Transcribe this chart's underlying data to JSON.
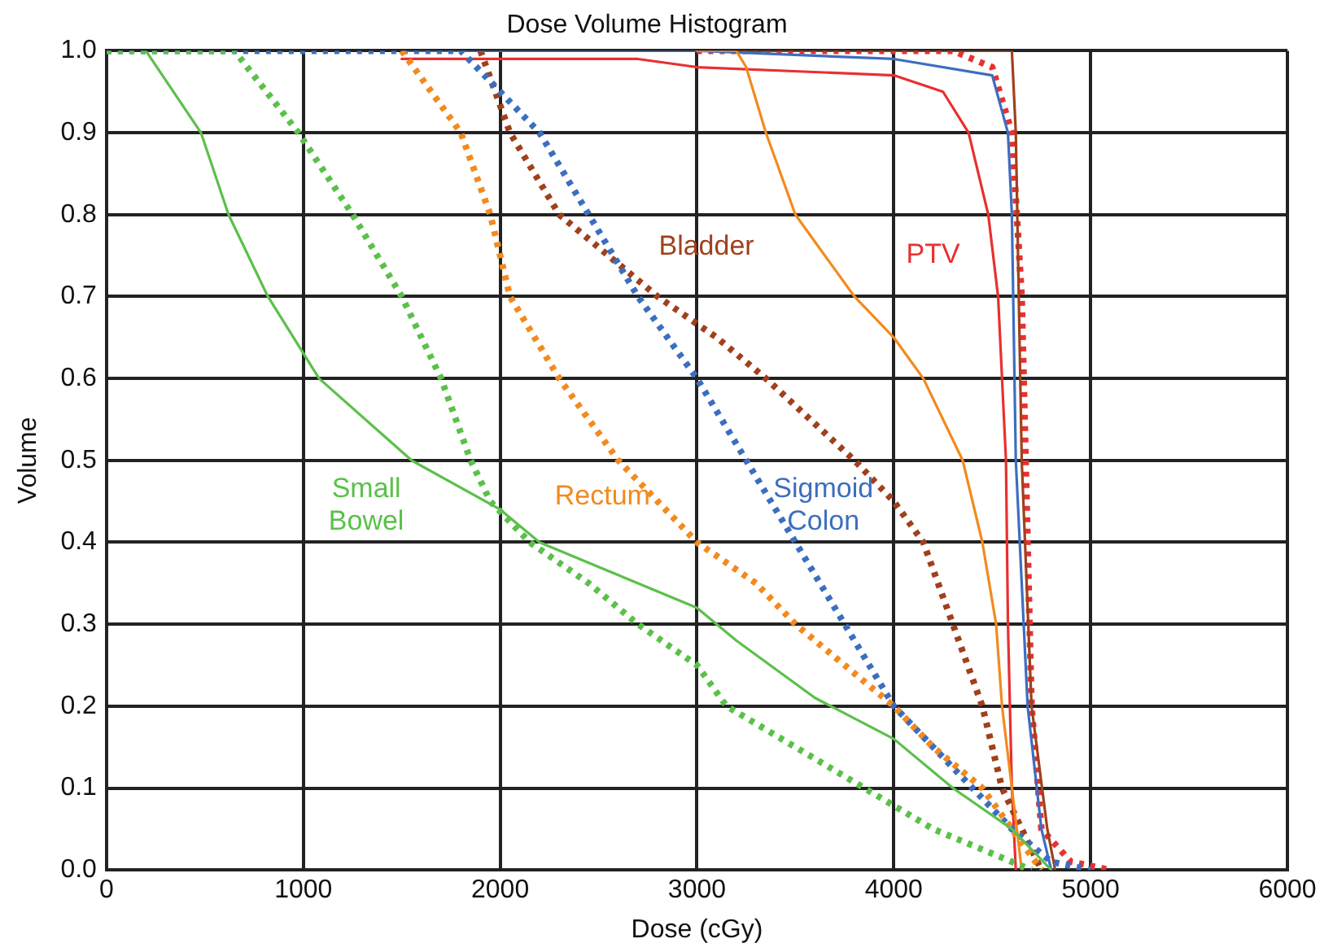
{
  "chart_data": {
    "type": "line",
    "title": "Dose Volume Histogram",
    "xlabel": "Dose (cGy)",
    "ylabel": "Volume",
    "xlim": [
      0,
      6000
    ],
    "xticks": [
      0,
      1000,
      2000,
      3000,
      4000,
      5000,
      6000
    ],
    "ylim": [
      0,
      1
    ],
    "yticks": [
      {
        "value": 0,
        "label": "0.0"
      },
      0.1,
      0.2,
      0.3,
      0.4,
      0.5,
      0.6,
      0.7,
      0.8,
      0.9,
      {
        "value": 1,
        "label": "1.0"
      }
    ],
    "grid": true,
    "legend": false,
    "marker": "none",
    "series": [
      {
        "color": "#5bc04a",
        "line_style": "solid",
        "x": [
          200,
          480,
          620,
          820,
          1080,
          1550,
          2000,
          2200,
          2500,
          3000,
          3200,
          3600,
          4000,
          4300,
          4600,
          4800
        ],
        "values": [
          1,
          0.9,
          0.8,
          0.7,
          0.6,
          0.5,
          0.44,
          0.4,
          0.37,
          0.32,
          0.28,
          0.21,
          0.16,
          0.1,
          0.05,
          0
        ]
      },
      {
        "color": "#5bc04a",
        "line_style": "dotted",
        "x": [
          0,
          650,
          975,
          1250,
          1500,
          1700,
          1850,
          1950,
          2150,
          2450,
          2700,
          3000,
          3150,
          3500,
          3850,
          4200,
          4500,
          4700
        ],
        "values": [
          1,
          1,
          0.9,
          0.8,
          0.7,
          0.6,
          0.5,
          0.45,
          0.4,
          0.35,
          0.3,
          0.25,
          0.2,
          0.15,
          0.1,
          0.05,
          0.02,
          0
        ]
      },
      {
        "color": "#f28a1e",
        "line_style": "solid",
        "x": [
          3000,
          3200,
          3250,
          3350,
          3500,
          3800,
          4000,
          4150,
          4350,
          4450,
          4520,
          4550,
          4600,
          4650
        ],
        "values": [
          1,
          1,
          0.98,
          0.9,
          0.8,
          0.7,
          0.65,
          0.6,
          0.5,
          0.4,
          0.3,
          0.2,
          0.1,
          0
        ]
      },
      {
        "color": "#f28a1e",
        "line_style": "dotted",
        "x": [
          1500,
          1800,
          1950,
          2050,
          2300,
          2600,
          2800,
          3000,
          3300,
          3500,
          3750,
          4000,
          4200,
          4450,
          4600,
          4750
        ],
        "values": [
          1,
          0.9,
          0.8,
          0.7,
          0.6,
          0.5,
          0.45,
          0.4,
          0.35,
          0.3,
          0.25,
          0.2,
          0.15,
          0.1,
          0.05,
          0
        ]
      },
      {
        "color": "#3c6ec0",
        "line_style": "solid",
        "x": [
          1500,
          3000,
          4000,
          4500,
          4580,
          4600,
          4620,
          4680,
          4750,
          4800
        ],
        "values": [
          1,
          1,
          0.99,
          0.97,
          0.9,
          0.8,
          0.5,
          0.2,
          0.05,
          0
        ]
      },
      {
        "color": "#3c6ec0",
        "line_style": "dotted",
        "x": [
          0,
          1800,
          2000,
          2200,
          2450,
          2700,
          3000,
          3250,
          3500,
          3750,
          4000,
          4200,
          4400,
          4600,
          4800,
          5000
        ],
        "values": [
          1,
          1,
          0.95,
          0.9,
          0.8,
          0.7,
          0.6,
          0.5,
          0.4,
          0.3,
          0.2,
          0.15,
          0.1,
          0.05,
          0.01,
          0
        ]
      },
      {
        "color": "#a0401c",
        "line_style": "solid",
        "x": [
          3000,
          4600,
          4620,
          4650,
          4700,
          4780,
          4820
        ],
        "values": [
          1,
          1,
          0.9,
          0.5,
          0.2,
          0.05,
          0
        ]
      },
      {
        "color": "#a0401c",
        "line_style": "dotted",
        "x": [
          1900,
          2050,
          2300,
          2800,
          3100,
          3350,
          3800,
          4000,
          4150,
          4300,
          4450,
          4550,
          4650,
          4750
        ],
        "values": [
          1,
          0.9,
          0.8,
          0.7,
          0.65,
          0.6,
          0.5,
          0.45,
          0.4,
          0.3,
          0.2,
          0.1,
          0.05,
          0
        ]
      },
      {
        "color": "#e83030",
        "line_style": "solid",
        "x": [
          1500,
          2700,
          3000,
          4000,
          4250,
          4380,
          4480,
          4530,
          4570,
          4580,
          4600,
          4620
        ],
        "values": [
          0.99,
          0.99,
          0.98,
          0.97,
          0.95,
          0.9,
          0.8,
          0.7,
          0.5,
          0.3,
          0.1,
          0
        ]
      },
      {
        "color": "#e83030",
        "line_style": "dotted",
        "x": [
          3000,
          4300,
          4500,
          4600,
          4650,
          4680,
          4700,
          4750,
          4900,
          5100
        ],
        "values": [
          1,
          1,
          0.98,
          0.9,
          0.7,
          0.4,
          0.2,
          0.05,
          0.01,
          0
        ]
      }
    ],
    "annotations": [
      "Bladder",
      "PTV",
      "Small Bowel",
      "Rectum",
      "Sigmoid Colon"
    ]
  }
}
